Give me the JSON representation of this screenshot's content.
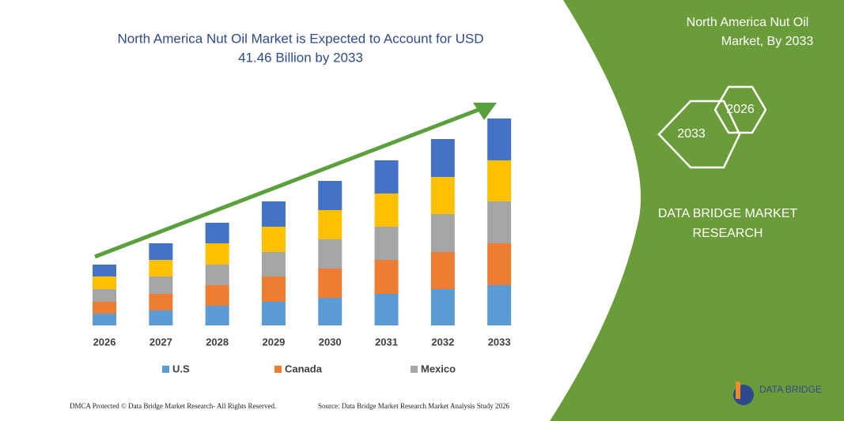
{
  "chart_data": {
    "type": "stacked_bar",
    "title": [
      "North America Nut Oil Market is Expected to Account for  USD",
      "41.46 Billion by 2033"
    ],
    "categories": [
      "2026",
      "2027",
      "2028",
      "2029",
      "2030",
      "2031",
      "2032",
      "2033"
    ],
    "series": [
      {
        "name": "U.S",
        "color": "#5b9bd5",
        "values": [
          15,
          19,
          25,
          30,
          35,
          40,
          46,
          51
        ]
      },
      {
        "name": "Canada",
        "color": "#ed7d31",
        "values": [
          15,
          21,
          26,
          32,
          37,
          43,
          47,
          53
        ]
      },
      {
        "name": "Mexico",
        "color": "#a5a5a5",
        "values": [
          16,
          22,
          26,
          31,
          37,
          42,
          48,
          53
        ]
      },
      {
        "color": "#ffc000",
        "values": [
          16,
          21,
          27,
          32,
          37,
          42,
          47,
          52
        ]
      },
      {
        "color": "#4472c4",
        "values": [
          15,
          21,
          26,
          32,
          37,
          42,
          48,
          53
        ]
      }
    ],
    "ylim": [
      0,
      300
    ]
  },
  "panel": {
    "heading": [
      "North America Nut Oil",
      "Market, By 2033"
    ],
    "hexagons": [
      "2026",
      "2033"
    ],
    "brand": [
      "DATA BRIDGE MARKET",
      "RESEARCH"
    ]
  },
  "footer": {
    "left": "DMCA Protected © Data Bridge Market Research- All Rights Reserved.",
    "right": "Source: Data Bridge Market Research  Market Analysis Study 2026",
    "logo": "DATA BRIDGE"
  }
}
